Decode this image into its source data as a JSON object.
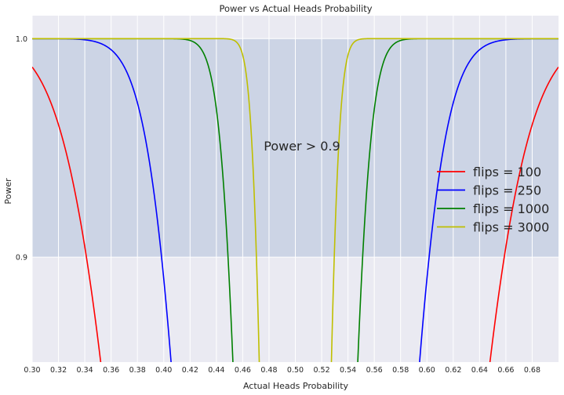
{
  "chart_data": {
    "type": "line",
    "title": "Power vs Actual Heads Probability",
    "xlabel": "Actual Heads Probability",
    "ylabel": "Power",
    "xlim": [
      0.3,
      0.7
    ],
    "ylim": [
      0.852,
      1.0105
    ],
    "xticks": [
      "0.30",
      "0.32",
      "0.34",
      "0.36",
      "0.38",
      "0.40",
      "0.42",
      "0.44",
      "0.46",
      "0.48",
      "0.50",
      "0.52",
      "0.54",
      "0.56",
      "0.58",
      "0.60",
      "0.62",
      "0.64",
      "0.66",
      "0.68"
    ],
    "yticks": [
      "0.9",
      "1.0"
    ],
    "grid": true,
    "shaded_band": {
      "y_from": 0.9,
      "y_to": 1.0,
      "color": "#ccd4e5"
    },
    "annotation": {
      "text": "Power > 0.9",
      "x": 0.476,
      "y": 0.951
    },
    "legend_position": "center-right",
    "series": [
      {
        "name": "flips = 100",
        "color": "#ff0000",
        "n": 100
      },
      {
        "name": "flips = 250",
        "color": "#0000ff",
        "n": 250
      },
      {
        "name": "flips = 1000",
        "color": "#008000",
        "n": 1000
      },
      {
        "name": "flips = 3000",
        "color": "#bfbf00",
        "n": 3000
      }
    ],
    "colors": {
      "plot_bg": "#eaeaf2",
      "grid": "#ffffff"
    }
  }
}
